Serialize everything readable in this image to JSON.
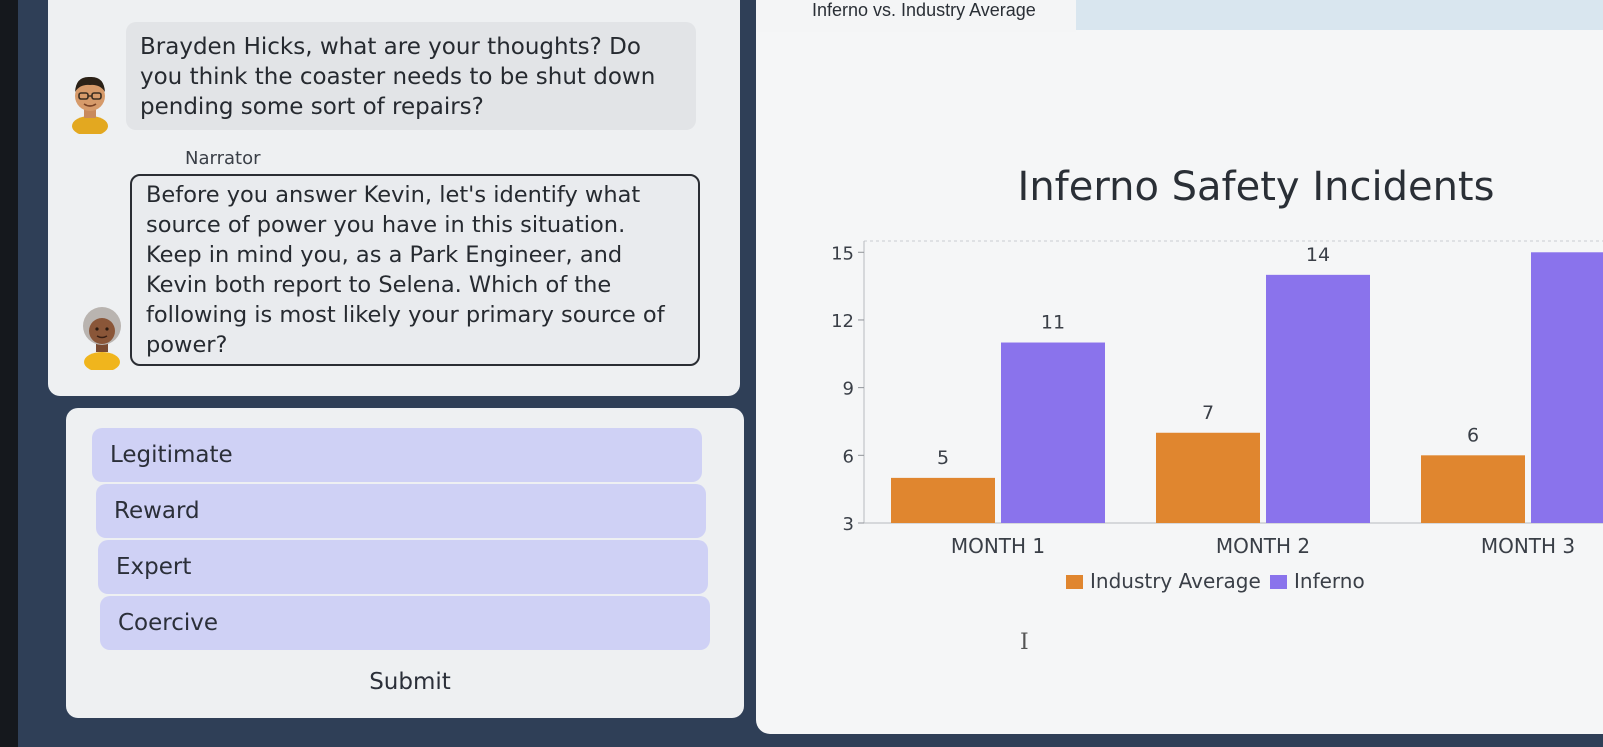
{
  "chat": {
    "kevin_message": "Brayden Hicks, what are your thoughts? Do you think the coaster needs to be shut down pending some sort of repairs?",
    "narrator_label": "Narrator",
    "narrator_message": "Before you answer Kevin, let's identify what source of power you have in this situation. Keep in mind you, as a Park Engineer, and Kevin both report to Selena. Which of the following is most likely your primary source of power?"
  },
  "options": [
    "Legitimate",
    "Reward",
    "Expert",
    "Coercive"
  ],
  "submit_label": "Submit",
  "chart_tab_title": "Inferno vs. Industry Average",
  "cursor": "I",
  "colors": {
    "industry": "#e0862f",
    "inferno": "#8a73ec",
    "option_bg": "#cfd1f5"
  },
  "chart_data": {
    "type": "bar",
    "title": "Inferno Safety Incidents",
    "categories": [
      "MONTH 1",
      "MONTH 2",
      "MONTH 3"
    ],
    "series": [
      {
        "name": "Industry Average",
        "values": [
          5,
          7,
          6
        ]
      },
      {
        "name": "Inferno",
        "values": [
          11,
          14,
          15
        ]
      }
    ],
    "data_labels": [
      [
        "5",
        "7",
        "6"
      ],
      [
        "11",
        "14",
        ""
      ]
    ],
    "yticks": [
      3,
      6,
      9,
      12,
      15
    ],
    "ylim": [
      3,
      15.5
    ],
    "legend_position": "bottom",
    "xlabel": "",
    "ylabel": ""
  }
}
